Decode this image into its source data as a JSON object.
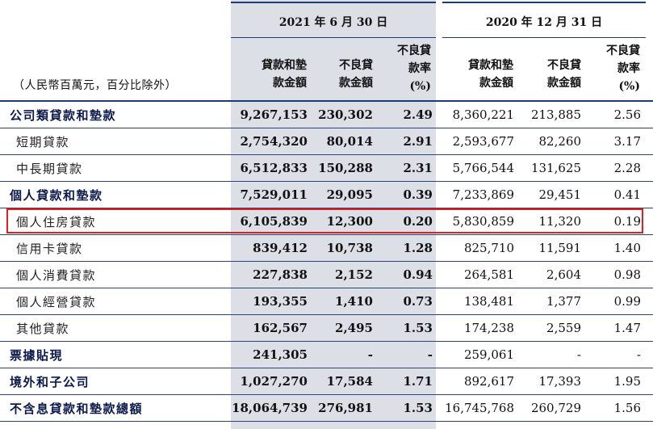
{
  "header": {
    "unit_note": "（人民幣百萬元，百分比除外）",
    "period_2021": "2021 年 6 月 30 日",
    "period_2020": "2020 年 12 月 31 日",
    "col_loans": [
      "貸款和墊",
      "款金額"
    ],
    "col_npl": [
      "不良貸",
      "款金額"
    ],
    "col_ratio": [
      "不良貸",
      "款率",
      "(%)"
    ]
  },
  "rows": [
    {
      "label": "公司類貸款和墊款",
      "bold": true,
      "v": [
        "9,267,153",
        "230,302",
        "2.49",
        "8,360,221",
        "213,885",
        "2.56"
      ]
    },
    {
      "label": "短期貸款",
      "bold": false,
      "v": [
        "2,754,320",
        "80,014",
        "2.91",
        "2,593,677",
        "82,260",
        "3.17"
      ]
    },
    {
      "label": "中長期貸款",
      "bold": false,
      "v": [
        "6,512,833",
        "150,288",
        "2.31",
        "5,766,544",
        "131,625",
        "2.28"
      ]
    },
    {
      "label": "個人貸款和墊款",
      "bold": true,
      "v": [
        "7,529,011",
        "29,095",
        "0.39",
        "7,233,869",
        "29,451",
        "0.41"
      ]
    },
    {
      "label": "個人住房貸款",
      "bold": false,
      "v": [
        "6,105,839",
        "12,300",
        "0.20",
        "5,830,859",
        "11,320",
        "0.19"
      ]
    },
    {
      "label": "信用卡貸款",
      "bold": false,
      "v": [
        "839,412",
        "10,738",
        "1.28",
        "825,710",
        "11,591",
        "1.40"
      ]
    },
    {
      "label": "個人消費貸款",
      "bold": false,
      "v": [
        "227,838",
        "2,152",
        "0.94",
        "264,581",
        "2,604",
        "0.98"
      ]
    },
    {
      "label": "個人經營貸款",
      "bold": false,
      "v": [
        "193,355",
        "1,410",
        "0.73",
        "138,481",
        "1,377",
        "0.99"
      ]
    },
    {
      "label": "其他貸款",
      "bold": false,
      "v": [
        "162,567",
        "2,495",
        "1.53",
        "174,238",
        "2,559",
        "1.47"
      ]
    },
    {
      "label": "票據貼現",
      "bold": true,
      "v": [
        "241,305",
        "-",
        "-",
        "259,061",
        "-",
        "-"
      ]
    },
    {
      "label": "境外和子公司",
      "bold": true,
      "v": [
        "1,027,270",
        "17,584",
        "1.71",
        "892,617",
        "17,393",
        "1.95"
      ]
    },
    {
      "label": "不含息貸款和墊款總額",
      "bold": true,
      "v": [
        "18,064,739",
        "276,981",
        "1.53",
        "16,745,768",
        "260,729",
        "1.56"
      ]
    }
  ],
  "highlight_color": "#e02020"
}
